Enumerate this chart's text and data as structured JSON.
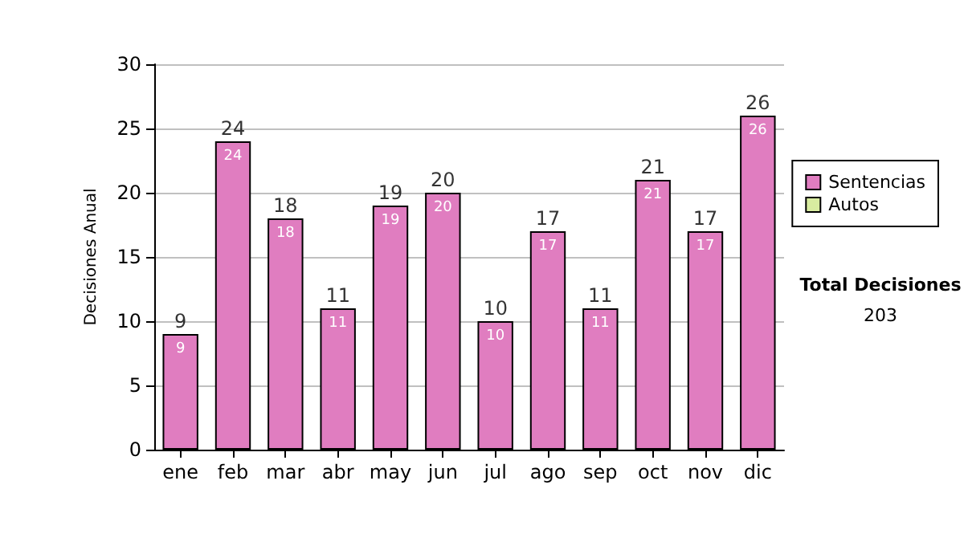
{
  "chart_data": {
    "type": "bar",
    "stacked": true,
    "ylabel": "Decisiones Anual",
    "categories": [
      "ene",
      "feb",
      "mar",
      "abr",
      "may",
      "jun",
      "jul",
      "ago",
      "sep",
      "oct",
      "nov",
      "dic"
    ],
    "series": [
      {
        "name": "Sentencias",
        "color": "#e07dc0",
        "values": [
          9,
          24,
          18,
          11,
          19,
          20,
          10,
          17,
          11,
          21,
          17,
          26
        ],
        "value_labels": [
          "9",
          "24",
          "18",
          "11",
          "19",
          "20",
          "10",
          "17",
          "11",
          "21",
          "17",
          "26"
        ]
      },
      {
        "name": "Autos",
        "color": "#d8eca0",
        "values": [
          0,
          0,
          0,
          0,
          0,
          0,
          0,
          0,
          0,
          0,
          0,
          0
        ]
      }
    ],
    "totals": [
      "9",
      "24",
      "18",
      "11",
      "19",
      "20",
      "10",
      "17",
      "11",
      "21",
      "17",
      "26"
    ],
    "ylim": [
      0,
      30
    ],
    "yticks": [
      0,
      5,
      10,
      15,
      20,
      25,
      30
    ],
    "grid": "y",
    "legend": "right",
    "annotations": [
      "Total Decisiones",
      "203"
    ]
  }
}
